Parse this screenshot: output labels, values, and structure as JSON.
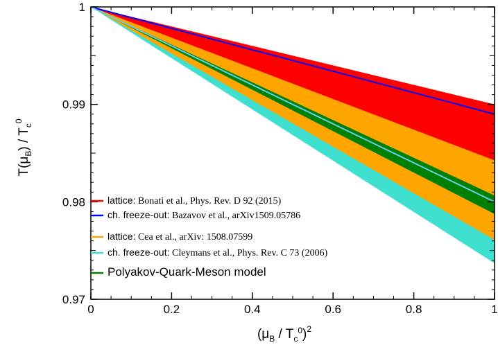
{
  "chart_data": {
    "type": "area",
    "xlim": [
      0,
      1
    ],
    "ylim": [
      0.97,
      1.0
    ],
    "x_ticks": [
      0,
      0.2,
      0.4,
      0.6,
      0.8,
      1
    ],
    "x_tick_labels": [
      "0",
      "0.2",
      "0.4",
      "0.6",
      "0.8",
      "1"
    ],
    "y_ticks": [
      0.97,
      0.98,
      0.99,
      1
    ],
    "y_tick_labels": [
      "0.97",
      "0.98",
      "0.99",
      "1"
    ],
    "xlabel": {
      "open": "(μ",
      "sub": "B",
      "mid": " / T",
      "sub2": "c",
      "sup0": "0",
      "close": ")",
      "sup": "2"
    },
    "ylabel": {
      "pre": "T(μ",
      "sub": "B",
      "mid": ") / T",
      "sub2": "c",
      "sup": "0"
    },
    "legend_position": "bottom-left",
    "bands": [
      {
        "name": "Cleymans",
        "color": "#40e0d0",
        "x": [
          0,
          1
        ],
        "upper": [
          1.0,
          0.9793
        ],
        "lower": [
          1.0,
          0.9737
        ]
      },
      {
        "name": "Cea",
        "color": "#ffa500",
        "x": [
          0,
          1
        ],
        "upper": [
          1.0,
          0.98425
        ],
        "lower": [
          1.0,
          0.9761
        ]
      },
      {
        "name": "Bonati",
        "color": "#ff0000",
        "x": [
          0,
          1
        ],
        "upper": [
          1.0,
          0.99
        ],
        "lower": [
          1.0,
          0.98425
        ]
      },
      {
        "name": "PQM",
        "color": "#008000",
        "x": [
          0,
          1
        ],
        "upper": [
          1.0,
          0.98065
        ],
        "lower": [
          1.0,
          0.97875
        ]
      }
    ],
    "lines": [
      {
        "name": "Bazavov",
        "color": "#0000ff",
        "x": [
          0,
          1
        ],
        "y": [
          1.0,
          0.989
        ]
      },
      {
        "name": "Cleymans-center",
        "color": "#66ccee",
        "x": [
          0,
          1
        ],
        "y": [
          1.0,
          0.98
        ]
      }
    ],
    "legend": [
      {
        "color": "#ff0000",
        "label": "lattice:",
        "ref": "Bonati et al., Phys. Rev. D 92 (2015)"
      },
      {
        "color": "#0000ff",
        "label": "ch. freeze-out:",
        "ref": "Bazavov et al., arXiv1509.05786"
      },
      {
        "color": "#ffa500",
        "label": "lattice:",
        "ref": "Cea et al., arXiv: 1508.07599"
      },
      {
        "color": "#40e0d0",
        "label": "ch. freeze-out:",
        "ref": "Cleymans et al., Phys. Rev. C 73 (2006)"
      },
      {
        "color": "#008000",
        "label": "Polyakov-Quark-Meson model",
        "ref": ""
      }
    ]
  }
}
